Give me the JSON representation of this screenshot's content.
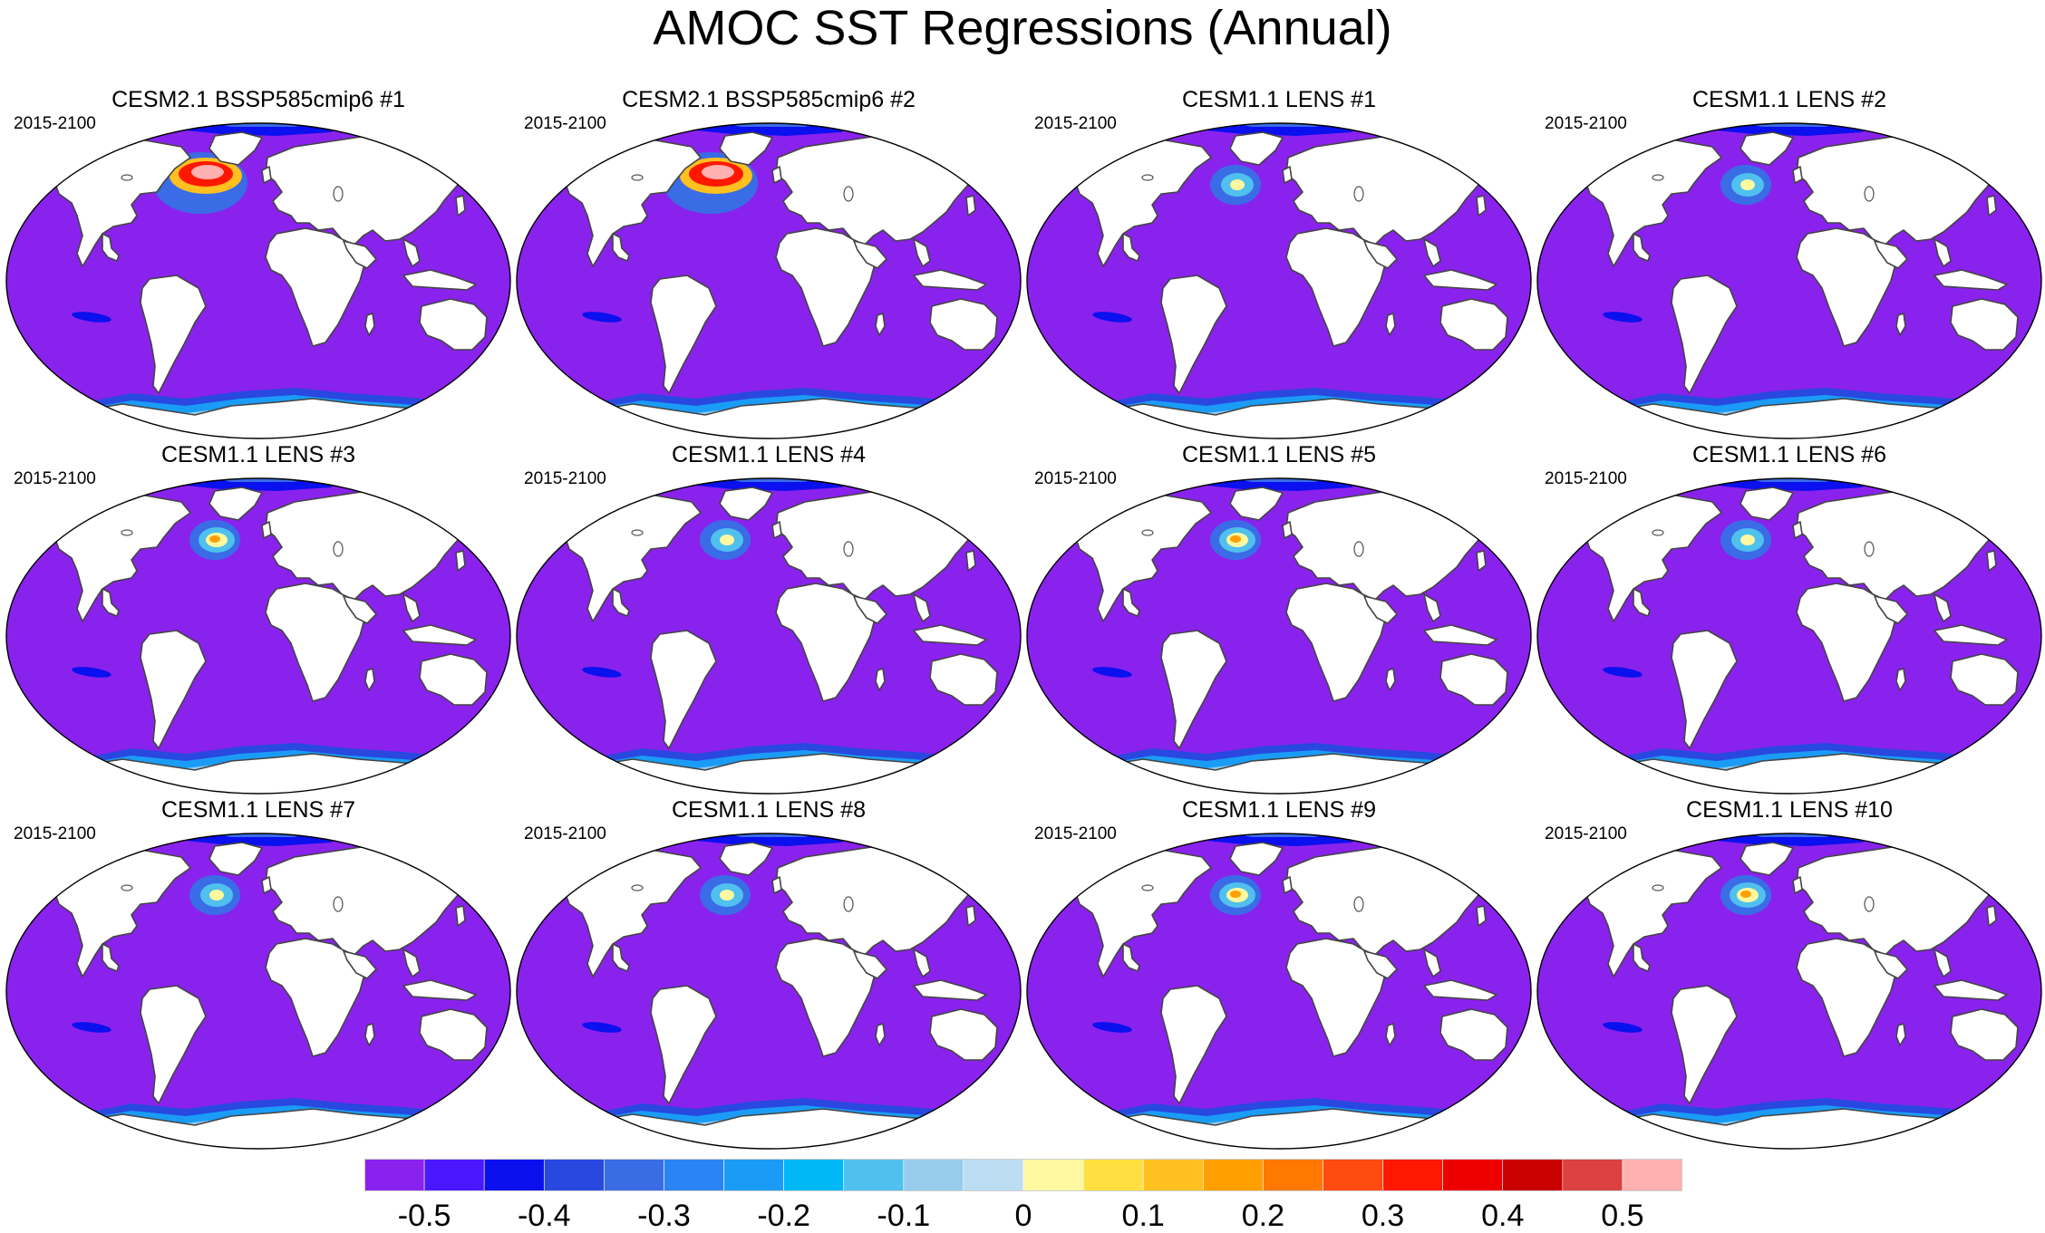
{
  "title": "AMOC SST Regressions (Annual)",
  "panels": [
    {
      "title": "CESM2.1 BSSP585cmip6 #1",
      "period": "2015-2100",
      "hotspot": "strong"
    },
    {
      "title": "CESM2.1 BSSP585cmip6 #2",
      "period": "2015-2100",
      "hotspot": "strong"
    },
    {
      "title": "CESM1.1 LENS #1",
      "period": "2015-2100",
      "hotspot": "weak"
    },
    {
      "title": "CESM1.1 LENS #2",
      "period": "2015-2100",
      "hotspot": "weak"
    },
    {
      "title": "CESM1.1 LENS #3",
      "period": "2015-2100",
      "hotspot": "medium"
    },
    {
      "title": "CESM1.1 LENS #4",
      "period": "2015-2100",
      "hotspot": "weak"
    },
    {
      "title": "CESM1.1 LENS #5",
      "period": "2015-2100",
      "hotspot": "medium"
    },
    {
      "title": "CESM1.1 LENS #6",
      "period": "2015-2100",
      "hotspot": "weak"
    },
    {
      "title": "CESM1.1 LENS #7",
      "period": "2015-2100",
      "hotspot": "weak"
    },
    {
      "title": "CESM1.1 LENS #8",
      "period": "2015-2100",
      "hotspot": "weak"
    },
    {
      "title": "CESM1.1 LENS #9",
      "period": "2015-2100",
      "hotspot": "medium"
    },
    {
      "title": "CESM1.1 LENS #10",
      "period": "2015-2100",
      "hotspot": "medium"
    }
  ],
  "colorbar": {
    "colors": [
      "#8a22ee",
      "#4a18ff",
      "#0a10ee",
      "#2848e0",
      "#3a6ce6",
      "#2a84f4",
      "#1a9cf6",
      "#00b8f6",
      "#50c0ee",
      "#98ccec",
      "#bcdcf2",
      "#fff8a0",
      "#ffe040",
      "#ffc020",
      "#ffa000",
      "#ff7800",
      "#ff4a10",
      "#ff1800",
      "#ee0000",
      "#c80000",
      "#dc4040",
      "#ffb0b0"
    ],
    "ticks": [
      "-0.5",
      "-0.4",
      "-0.3",
      "-0.2",
      "-0.1",
      "0",
      "0.1",
      "0.2",
      "0.3",
      "0.4",
      "0.5"
    ],
    "min": -0.55,
    "max": 0.55
  }
}
